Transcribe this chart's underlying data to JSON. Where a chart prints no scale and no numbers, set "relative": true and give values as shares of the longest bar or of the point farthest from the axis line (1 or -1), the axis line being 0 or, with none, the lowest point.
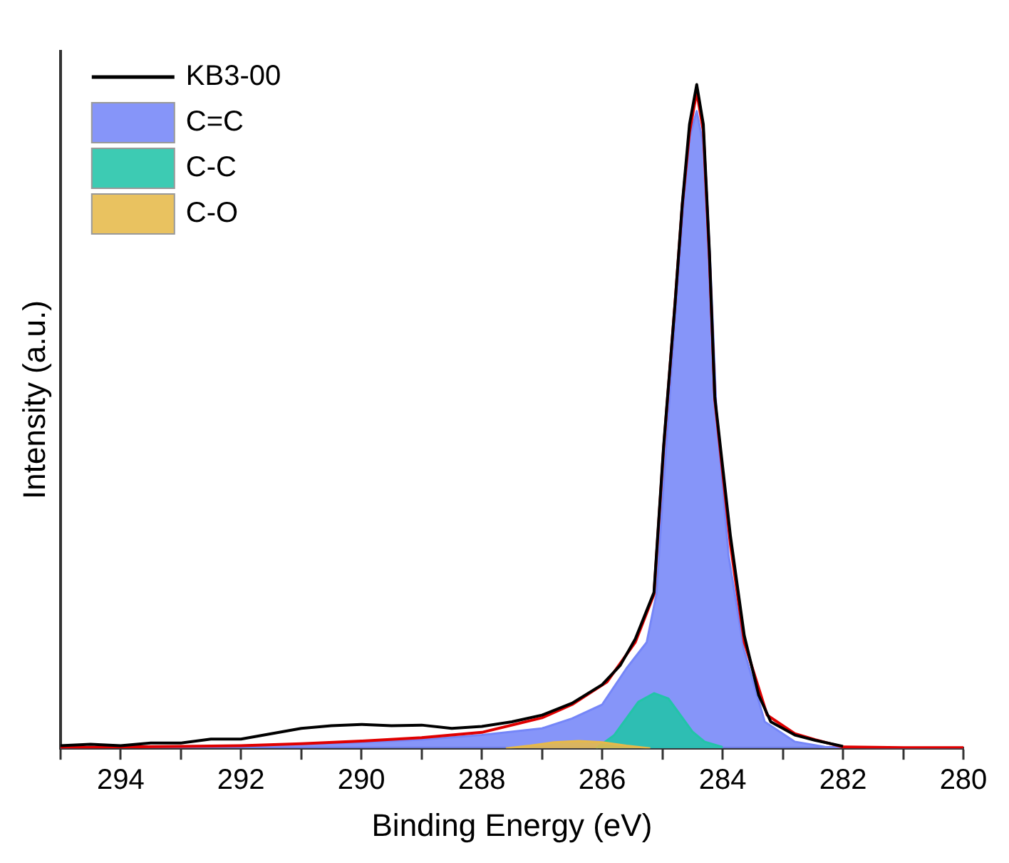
{
  "chart_data": {
    "type": "line",
    "relative": true,
    "xlabel": "Binding Energy (eV)",
    "ylabel": "Intensity (a.u.)",
    "xlim": [
      295,
      280
    ],
    "xticks": [
      {
        "value": 295,
        "label": null
      },
      294,
      {
        "value": 293,
        "label": null
      },
      292,
      {
        "value": 291,
        "label": null
      },
      290,
      {
        "value": 289,
        "label": null
      },
      288,
      {
        "value": 287,
        "label": null
      },
      286,
      {
        "value": 285,
        "label": null
      },
      284,
      {
        "value": 283,
        "label": null
      },
      282,
      {
        "value": 281,
        "label": null
      },
      280
    ],
    "legend": "top left",
    "grid": false,
    "marker": "none",
    "line_style": "solid",
    "series": [
      {
        "name": "C=C",
        "type": "area",
        "color": "#7586f8",
        "x": [
          295,
          294,
          293,
          292,
          291,
          290,
          289,
          288,
          287,
          286.5,
          286,
          285.6,
          285.26,
          285.1,
          284.94,
          284.77,
          284.65,
          284.55,
          284.43,
          284.3,
          284.2,
          284.1,
          283.9,
          283.65,
          283.3,
          282.8,
          282.3,
          281.5,
          280
        ],
        "values": [
          0.001,
          0.002,
          0.003,
          0.004,
          0.006,
          0.009,
          0.013,
          0.02,
          0.03,
          0.045,
          0.066,
          0.12,
          0.16,
          0.232,
          0.452,
          0.671,
          0.82,
          0.92,
          0.96,
          0.9,
          0.72,
          0.5,
          0.29,
          0.15,
          0.04,
          0.01,
          0.002,
          0.001,
          0
        ]
      },
      {
        "name": "C-C",
        "type": "area",
        "color": "#22c4a8",
        "x": [
          286.1,
          285.8,
          285.6,
          285.4,
          285.14,
          284.9,
          284.7,
          284.5,
          284.3,
          284
        ],
        "values": [
          0,
          0.02,
          0.045,
          0.07,
          0.083,
          0.075,
          0.05,
          0.025,
          0.01,
          0.002
        ]
      },
      {
        "name": "C-O",
        "type": "area",
        "color": "#e6b94a",
        "x": [
          287.6,
          287.2,
          286.8,
          286.39,
          286,
          285.6,
          285.2
        ],
        "values": [
          0,
          0.004,
          0.009,
          0.011,
          0.009,
          0.004,
          0
        ]
      },
      {
        "name": "KB3-00",
        "type": "line",
        "color": "#000000",
        "x": [
          295,
          294.5,
          294,
          293.5,
          293,
          292.5,
          292,
          291.5,
          291,
          290.5,
          290,
          289.5,
          289,
          288.5,
          288,
          287.5,
          287,
          286.5,
          286,
          285.7,
          285.45,
          285.14,
          284.98,
          284.79,
          284.67,
          284.55,
          284.43,
          284.32,
          284.22,
          284.13,
          283.87,
          283.64,
          283.4,
          283.2,
          282.8,
          282.46,
          282
        ],
        "values": [
          0.004,
          0.006,
          0.004,
          0.008,
          0.008,
          0.014,
          0.014,
          0.022,
          0.03,
          0.034,
          0.036,
          0.034,
          0.035,
          0.03,
          0.033,
          0.04,
          0.05,
          0.068,
          0.096,
          0.125,
          0.165,
          0.235,
          0.455,
          0.67,
          0.82,
          0.94,
          1.0,
          0.94,
          0.75,
          0.53,
          0.32,
          0.17,
          0.08,
          0.04,
          0.02,
          0.012,
          0.003
        ]
      },
      {
        "type": "line",
        "color": "#e00000",
        "x": [
          295,
          294,
          293,
          292,
          291,
          290,
          289,
          288,
          287,
          286.5,
          285.92,
          285.45,
          285.14,
          284.98,
          284.79,
          284.67,
          284.55,
          284.43,
          284.32,
          284.22,
          284.13,
          283.87,
          283.64,
          283.26,
          282.8,
          282.46,
          282,
          281,
          280
        ],
        "values": [
          0.001,
          0.002,
          0.003,
          0.004,
          0.007,
          0.011,
          0.016,
          0.024,
          0.046,
          0.066,
          0.1,
          0.16,
          0.232,
          0.452,
          0.671,
          0.818,
          0.928,
          0.989,
          0.93,
          0.74,
          0.526,
          0.307,
          0.16,
          0.05,
          0.022,
          0.013,
          0.002,
          0.001,
          0.001
        ]
      }
    ]
  }
}
